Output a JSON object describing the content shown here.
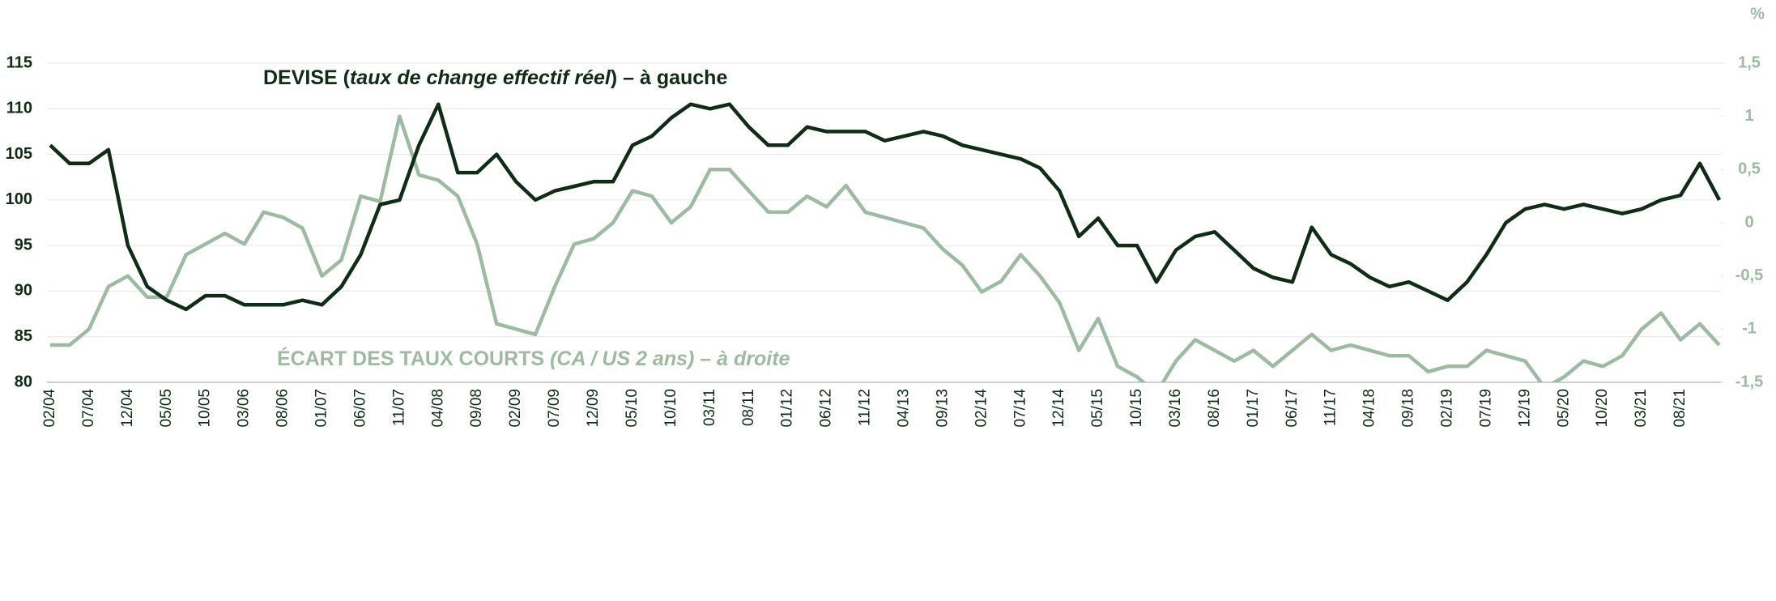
{
  "chart_data": {
    "type": "line",
    "categories": [
      "02/04",
      null,
      "07/04",
      null,
      "12/04",
      null,
      "05/05",
      null,
      "10/05",
      null,
      "03/06",
      null,
      "08/06",
      null,
      "01/07",
      null,
      "06/07",
      null,
      "11/07",
      null,
      "04/08",
      null,
      "09/08",
      null,
      "02/09",
      null,
      "07/09",
      null,
      "12/09",
      null,
      "05/10",
      null,
      "10/10",
      null,
      "03/11",
      null,
      "08/11",
      null,
      "01/12",
      null,
      "06/12",
      null,
      "11/12",
      null,
      "04/13",
      null,
      "09/13",
      null,
      "02/14",
      null,
      "07/14",
      null,
      "12/14",
      null,
      "05/15",
      null,
      "10/15",
      null,
      "03/16",
      null,
      "08/16",
      null,
      "01/17",
      null,
      "06/17",
      null,
      "11/17",
      null,
      "04/18",
      null,
      "09/18",
      null,
      "02/19",
      null,
      "07/19",
      null,
      "12/19",
      null,
      "05/20",
      null,
      "10/20",
      null,
      "03/21",
      null,
      "08/21",
      null,
      null
    ],
    "series": [
      {
        "color": "#0f2c16",
        "axis": "y",
        "values": [
          106,
          104,
          104,
          105.5,
          95,
          90.5,
          89,
          88,
          89.5,
          89.5,
          88.5,
          88.5,
          88.5,
          89,
          88.5,
          90.5,
          94,
          99.5,
          100,
          106,
          110.5,
          103,
          103,
          105,
          102,
          100,
          101,
          101.5,
          102,
          102,
          106,
          107,
          109,
          110.5,
          110,
          110.5,
          108,
          106,
          106,
          108,
          107.5,
          107.5,
          107.5,
          106.5,
          107,
          107.5,
          107,
          106,
          105.5,
          105,
          104.5,
          103.5,
          101,
          96,
          98,
          95,
          95,
          91,
          94.5,
          96,
          96.5,
          94.5,
          92.5,
          91.5,
          91,
          97,
          94,
          93,
          91.5,
          90.5,
          91,
          90,
          89,
          91,
          94,
          97.5,
          99,
          99.5,
          99,
          99.5,
          99,
          98.5,
          99,
          100,
          100.5,
          104,
          100
        ]
      },
      {
        "color": "#9dbba2",
        "axis": "y2",
        "values": [
          -1.15,
          -1.15,
          -1.0,
          -0.6,
          -0.5,
          -0.7,
          -0.7,
          -0.3,
          -0.2,
          -0.1,
          -0.2,
          0.1,
          0.05,
          -0.05,
          -0.5,
          -0.35,
          0.25,
          0.2,
          1.0,
          0.45,
          0.4,
          0.25,
          -0.2,
          -0.95,
          -1.0,
          -1.05,
          -0.6,
          -0.2,
          -0.15,
          0.0,
          0.3,
          0.25,
          0.0,
          0.15,
          0.5,
          0.5,
          0.3,
          0.1,
          0.1,
          0.25,
          0.15,
          0.35,
          0.1,
          0.05,
          0.0,
          -0.05,
          -0.25,
          -0.4,
          -0.65,
          -0.55,
          -0.3,
          -0.5,
          -0.75,
          -1.2,
          -0.9,
          -1.35,
          -1.45,
          -1.6,
          -1.3,
          -1.1,
          -1.2,
          -1.3,
          -1.2,
          -1.35,
          -1.2,
          -1.05,
          -1.2,
          -1.15,
          -1.2,
          -1.25,
          -1.25,
          -1.4,
          -1.35,
          -1.35,
          -1.2,
          -1.25,
          -1.3,
          -1.55,
          -1.45,
          -1.3,
          -1.35,
          -1.25,
          -1.0,
          -0.85,
          -1.1,
          -0.95,
          -1.15
        ]
      }
    ],
    "annotations": [
      {
        "parts": [
          "DEVISE (",
          "taux de change effectif réel",
          ") – à gauche"
        ],
        "color": "#0f2c16"
      },
      {
        "parts": [
          "ÉCART DES TAUX COURTS ",
          "(CA / US 2 ans) – à droite"
        ],
        "color": "#9dbba2"
      }
    ],
    "y2label": "%",
    "ylim": [
      80,
      115
    ],
    "yticks": [
      80,
      85,
      90,
      95,
      100,
      105,
      110,
      115
    ],
    "y2lim": [
      -1.5,
      1.5
    ],
    "y2ticks": [
      {
        "value": -1.5,
        "label": "-1,5"
      },
      -1,
      {
        "value": -0.5,
        "label": "-0,5"
      },
      0,
      {
        "value": 0.5,
        "label": "0,5"
      },
      1,
      {
        "value": 1.5,
        "label": "1,5"
      }
    ],
    "grid": true
  }
}
